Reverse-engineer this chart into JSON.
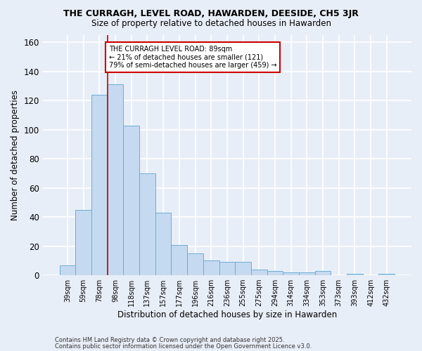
{
  "title1": "THE CURRAGH, LEVEL ROAD, HAWARDEN, DEESIDE, CH5 3JR",
  "title2": "Size of property relative to detached houses in Hawarden",
  "xlabel": "Distribution of detached houses by size in Hawarden",
  "ylabel": "Number of detached properties",
  "bar_labels": [
    "39sqm",
    "59sqm",
    "78sqm",
    "98sqm",
    "118sqm",
    "137sqm",
    "157sqm",
    "177sqm",
    "196sqm",
    "216sqm",
    "236sqm",
    "255sqm",
    "275sqm",
    "294sqm",
    "314sqm",
    "334sqm",
    "353sqm",
    "373sqm",
    "393sqm",
    "412sqm",
    "432sqm"
  ],
  "bar_values": [
    7,
    45,
    124,
    131,
    103,
    70,
    43,
    21,
    15,
    10,
    9,
    9,
    4,
    3,
    2,
    2,
    3,
    0,
    1,
    0,
    1
  ],
  "bar_color": "#c5d9f0",
  "bar_edge_color": "#6baed6",
  "red_line_x": 2.5,
  "annotation_text": "THE CURRAGH LEVEL ROAD: 89sqm\n← 21% of detached houses are smaller (121)\n79% of semi-detached houses are larger (459) →",
  "annotation_box_color": "#ffffff",
  "annotation_edge_color": "#cc0000",
  "ylim": [
    0,
    165
  ],
  "yticks": [
    0,
    20,
    40,
    60,
    80,
    100,
    120,
    140,
    160
  ],
  "footer1": "Contains HM Land Registry data © Crown copyright and database right 2025.",
  "footer2": "Contains public sector information licensed under the Open Government Licence v3.0.",
  "background_color": "#e8eef7",
  "grid_color": "#ffffff"
}
